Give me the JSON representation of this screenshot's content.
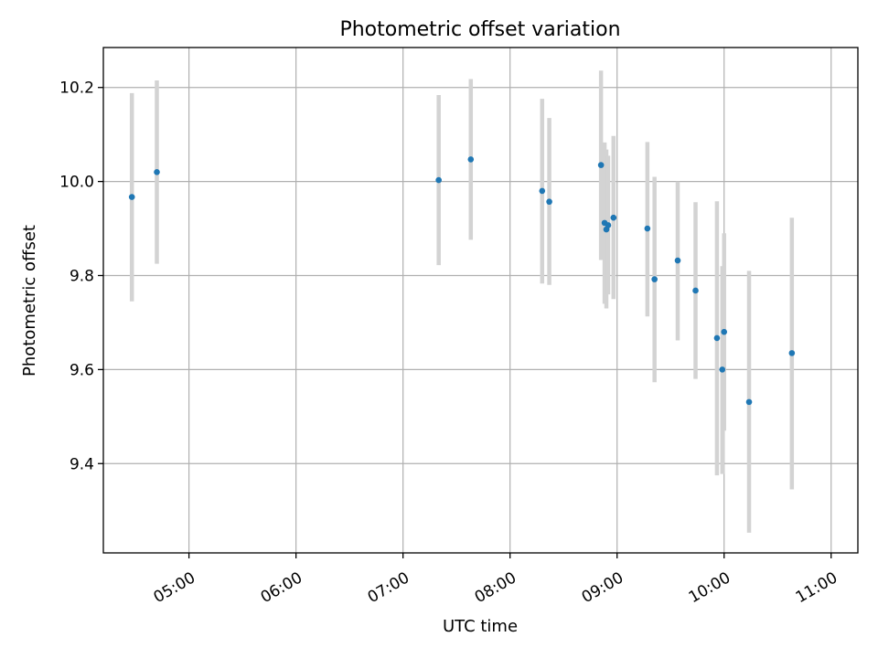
{
  "chart_data": {
    "type": "scatter",
    "title": "Photometric offset variation",
    "xlabel": "UTC time",
    "ylabel": "Photometric offset",
    "x_is_time": true,
    "xlim": [
      "04:12",
      "11:15"
    ],
    "ylim": [
      9.21,
      10.285
    ],
    "x_ticks": [
      "05:00",
      "06:00",
      "07:00",
      "08:00",
      "09:00",
      "10:00",
      "11:00"
    ],
    "y_ticks": [
      9.4,
      9.6,
      9.8,
      10.0,
      10.2
    ],
    "y_tick_labels": [
      "9.4",
      "9.6",
      "9.8",
      "10.0",
      "10.2"
    ],
    "grid": true,
    "colors": {
      "point": "#1f77b4",
      "errorbar": "#d3d3d3"
    },
    "points": [
      {
        "t": "04:28",
        "y": 9.967,
        "lo": 9.745,
        "hi": 10.188
      },
      {
        "t": "04:42",
        "y": 10.02,
        "lo": 9.825,
        "hi": 10.215
      },
      {
        "t": "07:20",
        "y": 10.003,
        "lo": 9.822,
        "hi": 10.184
      },
      {
        "t": "07:38",
        "y": 10.047,
        "lo": 9.876,
        "hi": 10.218
      },
      {
        "t": "08:18",
        "y": 9.98,
        "lo": 9.783,
        "hi": 10.176
      },
      {
        "t": "08:22",
        "y": 9.957,
        "lo": 9.78,
        "hi": 10.135
      },
      {
        "t": "08:51",
        "y": 10.035,
        "lo": 9.833,
        "hi": 10.236
      },
      {
        "t": "08:53",
        "y": 9.912,
        "lo": 9.74,
        "hi": 10.083
      },
      {
        "t": "08:54",
        "y": 9.898,
        "lo": 9.73,
        "hi": 10.068
      },
      {
        "t": "08:55",
        "y": 9.907,
        "lo": 9.76,
        "hi": 10.055
      },
      {
        "t": "08:58",
        "y": 9.923,
        "lo": 9.75,
        "hi": 10.097
      },
      {
        "t": "09:17",
        "y": 9.9,
        "lo": 9.713,
        "hi": 10.084
      },
      {
        "t": "09:21",
        "y": 9.792,
        "lo": 9.573,
        "hi": 10.01
      },
      {
        "t": "09:34",
        "y": 9.832,
        "lo": 9.662,
        "hi": 10.0
      },
      {
        "t": "09:44",
        "y": 9.768,
        "lo": 9.58,
        "hi": 9.956
      },
      {
        "t": "09:56",
        "y": 9.667,
        "lo": 9.375,
        "hi": 9.958
      },
      {
        "t": "09:59",
        "y": 9.6,
        "lo": 9.378,
        "hi": 9.82
      },
      {
        "t": "10:00",
        "y": 9.68,
        "lo": 9.47,
        "hi": 9.89
      },
      {
        "t": "10:14",
        "y": 9.531,
        "lo": 9.253,
        "hi": 9.81
      },
      {
        "t": "10:38",
        "y": 9.635,
        "lo": 9.345,
        "hi": 9.923
      }
    ]
  }
}
